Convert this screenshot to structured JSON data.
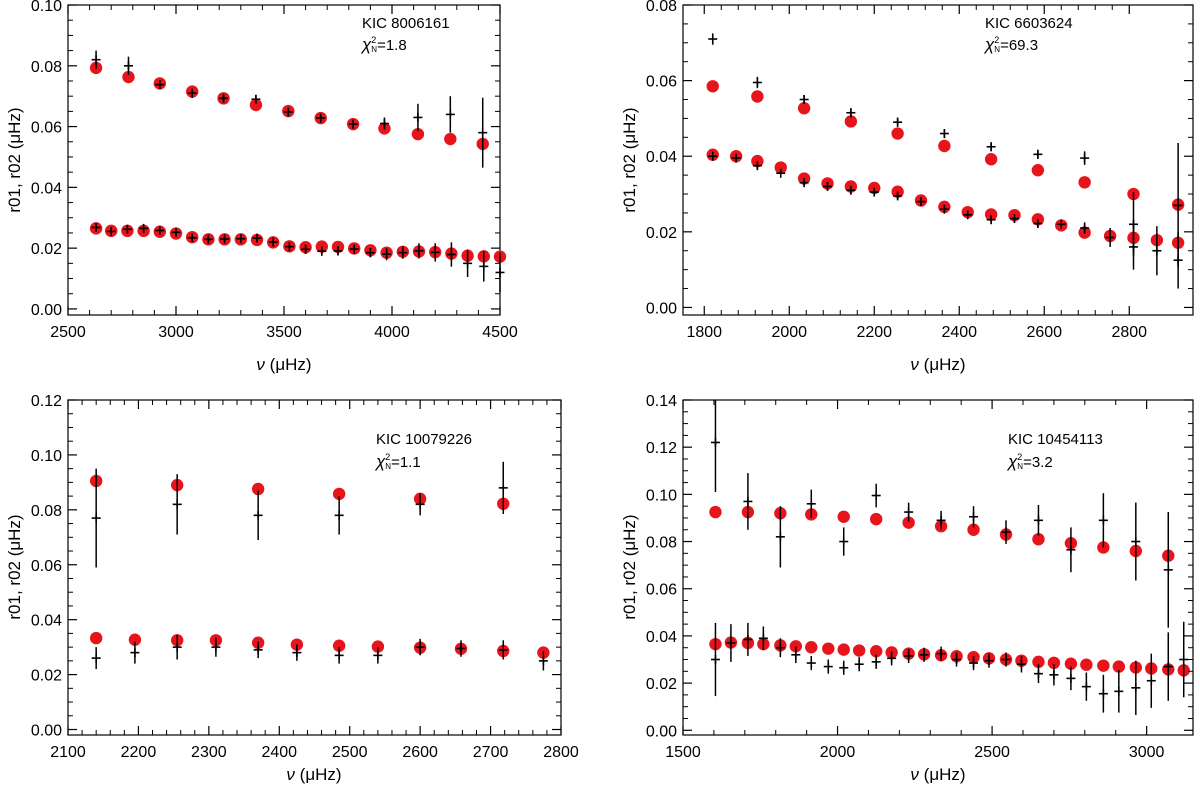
{
  "colors": {
    "model": "#e8141b",
    "observed": "#000000",
    "frame": "#000000"
  },
  "chart_data": [
    {
      "type": "scatter",
      "star": "KIC  8006161",
      "chi2_value": "=1.8",
      "xlabel_symbol": "ν",
      "xlabel_unit": "(μHz)",
      "ylabel": "r01, r02 (μHz)",
      "xlim": [
        2500,
        4500
      ],
      "ylim": [
        -0.002,
        0.1
      ],
      "xticks": [
        "2500",
        "3000",
        "3500",
        "4000",
        "4500"
      ],
      "yticks": [
        "0.00",
        "0.02",
        "0.04",
        "0.06",
        "0.08",
        "0.10"
      ],
      "series": [
        {
          "name": "model",
          "marker": "circle",
          "x": [
            2630,
            2780,
            2925,
            3075,
            3220,
            3370,
            3520,
            3670,
            3820,
            3965,
            4120,
            4270,
            4420,
            2630,
            2700,
            2775,
            2850,
            2925,
            3000,
            3075,
            3150,
            3225,
            3300,
            3375,
            3450,
            3525,
            3600,
            3675,
            3750,
            3825,
            3900,
            3975,
            4050,
            4125,
            4200,
            4275,
            4350,
            4425,
            4500
          ],
          "y": [
            0.0793,
            0.0763,
            0.0742,
            0.0715,
            0.0693,
            0.0671,
            0.0651,
            0.0628,
            0.0608,
            0.0594,
            0.0575,
            0.0559,
            0.0543,
            0.0265,
            0.0257,
            0.0257,
            0.0257,
            0.0254,
            0.0248,
            0.0236,
            0.0229,
            0.0229,
            0.0229,
            0.0227,
            0.0219,
            0.0206,
            0.0203,
            0.0205,
            0.0204,
            0.0199,
            0.0193,
            0.0185,
            0.0188,
            0.0189,
            0.0187,
            0.0182,
            0.0175,
            0.0173,
            0.0172
          ]
        },
        {
          "name": "observed",
          "marker": "plus",
          "x": [
            2630,
            2780,
            2925,
            3075,
            3220,
            3370,
            3520,
            3670,
            3820,
            3965,
            4120,
            4270,
            4420,
            2630,
            2700,
            2775,
            2850,
            2925,
            3000,
            3075,
            3150,
            3225,
            3300,
            3375,
            3450,
            3525,
            3600,
            3675,
            3750,
            3825,
            3900,
            3975,
            4050,
            4125,
            4200,
            4275,
            4350,
            4425,
            4500
          ],
          "y": [
            0.082,
            0.08,
            0.0738,
            0.071,
            0.0693,
            0.069,
            0.0648,
            0.0628,
            0.0608,
            0.061,
            0.063,
            0.064,
            0.058,
            0.0268,
            0.0255,
            0.0262,
            0.0265,
            0.0258,
            0.0252,
            0.0234,
            0.0229,
            0.023,
            0.0231,
            0.0233,
            0.022,
            0.0205,
            0.0196,
            0.019,
            0.0191,
            0.0197,
            0.0185,
            0.018,
            0.0185,
            0.0191,
            0.0186,
            0.0179,
            0.015,
            0.014,
            0.012
          ],
          "err": [
            0.003,
            0.003,
            0.0015,
            0.0015,
            0.0013,
            0.0013,
            0.0015,
            0.0015,
            0.0015,
            0.002,
            0.0045,
            0.006,
            0.0115,
            0.0012,
            0.001,
            0.001,
            0.001,
            0.001,
            0.001,
            0.001,
            0.001,
            0.001,
            0.001,
            0.001,
            0.001,
            0.001,
            0.0015,
            0.0015,
            0.0015,
            0.0015,
            0.0015,
            0.002,
            0.002,
            0.0025,
            0.003,
            0.004,
            0.0045,
            0.005,
            0.0065
          ]
        }
      ]
    },
    {
      "type": "scatter",
      "star": "KIC  6603624",
      "chi2_value": "=69.3",
      "xlabel_symbol": "ν",
      "xlabel_unit": "(μHz)",
      "ylabel": "r01, r02 (μHz)",
      "xlim": [
        1750,
        2950
      ],
      "ylim": [
        -0.002,
        0.08
      ],
      "xticks": [
        "1800",
        "2000",
        "2200",
        "2400",
        "2600",
        "2800"
      ],
      "yticks": [
        "0.00",
        "0.02",
        "0.04",
        "0.06",
        "0.08"
      ],
      "series": [
        {
          "name": "model",
          "marker": "circle",
          "x": [
            1820,
            1925,
            2035,
            2145,
            2255,
            2365,
            2475,
            2585,
            2695,
            2810,
            2915,
            1820,
            1875,
            1925,
            1980,
            2035,
            2090,
            2145,
            2200,
            2255,
            2310,
            2365,
            2420,
            2475,
            2530,
            2585,
            2640,
            2695,
            2755,
            2810,
            2865,
            2915
          ],
          "y": [
            0.0585,
            0.0558,
            0.0527,
            0.0492,
            0.046,
            0.0427,
            0.0392,
            0.0363,
            0.0331,
            0.03,
            0.0272,
            0.0404,
            0.04,
            0.0387,
            0.037,
            0.0341,
            0.0328,
            0.032,
            0.0316,
            0.0306,
            0.0283,
            0.0266,
            0.0252,
            0.0246,
            0.0244,
            0.0233,
            0.0217,
            0.0198,
            0.0189,
            0.0184,
            0.0178,
            0.0171
          ]
        },
        {
          "name": "observed",
          "marker": "plus",
          "x": [
            1820,
            1925,
            2035,
            2145,
            2255,
            2365,
            2475,
            2585,
            2695,
            2810,
            2915,
            1820,
            1875,
            1925,
            1980,
            2035,
            2090,
            2145,
            2200,
            2255,
            2310,
            2365,
            2420,
            2475,
            2530,
            2585,
            2640,
            2695,
            2755,
            2810,
            2865,
            2915
          ],
          "y": [
            0.071,
            0.0595,
            0.055,
            0.0515,
            0.049,
            0.046,
            0.0425,
            0.0405,
            0.0395,
            0.022,
            0.027,
            0.04,
            0.0395,
            0.0375,
            0.0355,
            0.033,
            0.032,
            0.031,
            0.0305,
            0.0295,
            0.028,
            0.026,
            0.0245,
            0.0232,
            0.0235,
            0.0222,
            0.022,
            0.021,
            0.0185,
            0.016,
            0.015,
            0.0125
          ],
          "err": [
            0.0015,
            0.0015,
            0.0012,
            0.0012,
            0.0012,
            0.0012,
            0.0012,
            0.0012,
            0.0018,
            0.0085,
            0.0165,
            0.001,
            0.001,
            0.001,
            0.001,
            0.001,
            0.001,
            0.001,
            0.001,
            0.001,
            0.001,
            0.001,
            0.001,
            0.001,
            0.001,
            0.0012,
            0.0012,
            0.0015,
            0.0025,
            0.006,
            0.0065,
            0.0075
          ]
        }
      ]
    },
    {
      "type": "scatter",
      "star": "KIC  10079226",
      "chi2_value": "=1.1",
      "xlabel_symbol": "ν",
      "xlabel_unit": "(μHz)",
      "ylabel": "r01, r02 (μHz)",
      "xlim": [
        2100,
        2800
      ],
      "ylim": [
        -0.002,
        0.12
      ],
      "xticks": [
        "2100",
        "2200",
        "2300",
        "2400",
        "2500",
        "2600",
        "2700",
        "2800"
      ],
      "yticks": [
        "0.00",
        "0.02",
        "0.04",
        "0.06",
        "0.08",
        "0.10",
        "0.12"
      ],
      "series": [
        {
          "name": "model",
          "marker": "circle",
          "x": [
            2140,
            2255,
            2370,
            2485,
            2600,
            2718,
            2140,
            2195,
            2255,
            2310,
            2370,
            2425,
            2485,
            2540,
            2600,
            2658,
            2718,
            2775
          ],
          "y": [
            0.0905,
            0.089,
            0.0876,
            0.0858,
            0.084,
            0.0822,
            0.0333,
            0.0327,
            0.0325,
            0.0325,
            0.0316,
            0.0309,
            0.0305,
            0.0302,
            0.0298,
            0.0294,
            0.0286,
            0.028
          ]
        },
        {
          "name": "observed",
          "marker": "plus",
          "x": [
            2140,
            2255,
            2370,
            2485,
            2600,
            2718,
            2140,
            2195,
            2255,
            2310,
            2370,
            2425,
            2485,
            2540,
            2600,
            2658,
            2718,
            2775
          ],
          "y": [
            0.077,
            0.082,
            0.078,
            0.078,
            0.082,
            0.088,
            0.026,
            0.028,
            0.03,
            0.03,
            0.029,
            0.028,
            0.027,
            0.027,
            0.03,
            0.0295,
            0.029,
            0.025
          ],
          "err": [
            0.018,
            0.011,
            0.009,
            0.007,
            0.004,
            0.0095,
            0.004,
            0.004,
            0.0045,
            0.0035,
            0.003,
            0.003,
            0.003,
            0.003,
            0.003,
            0.003,
            0.0035,
            0.0035
          ]
        }
      ]
    },
    {
      "type": "scatter",
      "star": "KIC  10454113",
      "chi2_value": "=3.2",
      "xlabel_symbol": "ν",
      "xlabel_unit": "(μHz)",
      "ylabel": "r01, r02 (μHz)",
      "xlim": [
        1500,
        3150
      ],
      "ylim": [
        -0.002,
        0.14
      ],
      "xticks": [
        "1500",
        "2000",
        "2500",
        "3000"
      ],
      "yticks": [
        "0.00",
        "0.02",
        "0.04",
        "0.06",
        "0.08",
        "0.10",
        "0.12",
        "0.14"
      ],
      "series": [
        {
          "name": "model",
          "marker": "circle",
          "x": [
            1605,
            1710,
            1815,
            1915,
            2020,
            2125,
            2230,
            2335,
            2440,
            2545,
            2650,
            2755,
            2860,
            2965,
            3070,
            1605,
            1655,
            1710,
            1760,
            1815,
            1865,
            1915,
            1970,
            2020,
            2070,
            2125,
            2175,
            2230,
            2280,
            2335,
            2385,
            2440,
            2490,
            2545,
            2595,
            2650,
            2700,
            2755,
            2805,
            2860,
            2910,
            2965,
            3015,
            3070,
            3120
          ],
          "y": [
            0.0925,
            0.0925,
            0.092,
            0.0915,
            0.0905,
            0.0895,
            0.088,
            0.0865,
            0.085,
            0.083,
            0.081,
            0.0793,
            0.0775,
            0.076,
            0.074,
            0.0365,
            0.0372,
            0.037,
            0.0365,
            0.036,
            0.0356,
            0.0352,
            0.0346,
            0.0342,
            0.0338,
            0.0335,
            0.033,
            0.0325,
            0.0322,
            0.0318,
            0.0314,
            0.031,
            0.0305,
            0.03,
            0.0295,
            0.029,
            0.0286,
            0.0282,
            0.0278,
            0.0274,
            0.027,
            0.0266,
            0.0262,
            0.0258,
            0.0254
          ]
        },
        {
          "name": "observed",
          "marker": "plus",
          "x": [
            1605,
            1710,
            1815,
            1915,
            2020,
            2125,
            2230,
            2335,
            2440,
            2545,
            2650,
            2755,
            2860,
            2965,
            3070,
            1605,
            1655,
            1710,
            1760,
            1815,
            1865,
            1915,
            1970,
            2020,
            2070,
            2125,
            2175,
            2230,
            2280,
            2335,
            2385,
            2440,
            2490,
            2545,
            2595,
            2650,
            2700,
            2755,
            2805,
            2860,
            2910,
            2965,
            3015,
            3070,
            3120
          ],
          "y": [
            0.122,
            0.097,
            0.082,
            0.096,
            0.08,
            0.0995,
            0.0925,
            0.089,
            0.0905,
            0.084,
            0.089,
            0.0765,
            0.089,
            0.08,
            0.068,
            0.03,
            0.037,
            0.0385,
            0.039,
            0.035,
            0.032,
            0.0285,
            0.027,
            0.0265,
            0.028,
            0.029,
            0.0305,
            0.0315,
            0.032,
            0.0325,
            0.03,
            0.0285,
            0.0295,
            0.03,
            0.028,
            0.024,
            0.0235,
            0.022,
            0.0185,
            0.0155,
            0.0165,
            0.018,
            0.021,
            0.027,
            0.03
          ],
          "err": [
            0.021,
            0.012,
            0.013,
            0.006,
            0.006,
            0.005,
            0.004,
            0.004,
            0.0045,
            0.005,
            0.0065,
            0.0095,
            0.0115,
            0.0165,
            0.0245,
            0.0155,
            0.008,
            0.007,
            0.005,
            0.004,
            0.0035,
            0.003,
            0.003,
            0.003,
            0.003,
            0.003,
            0.003,
            0.003,
            0.003,
            0.003,
            0.003,
            0.003,
            0.003,
            0.003,
            0.0035,
            0.004,
            0.0045,
            0.005,
            0.006,
            0.008,
            0.009,
            0.0115,
            0.0115,
            0.0145,
            0.016
          ]
        }
      ]
    }
  ]
}
